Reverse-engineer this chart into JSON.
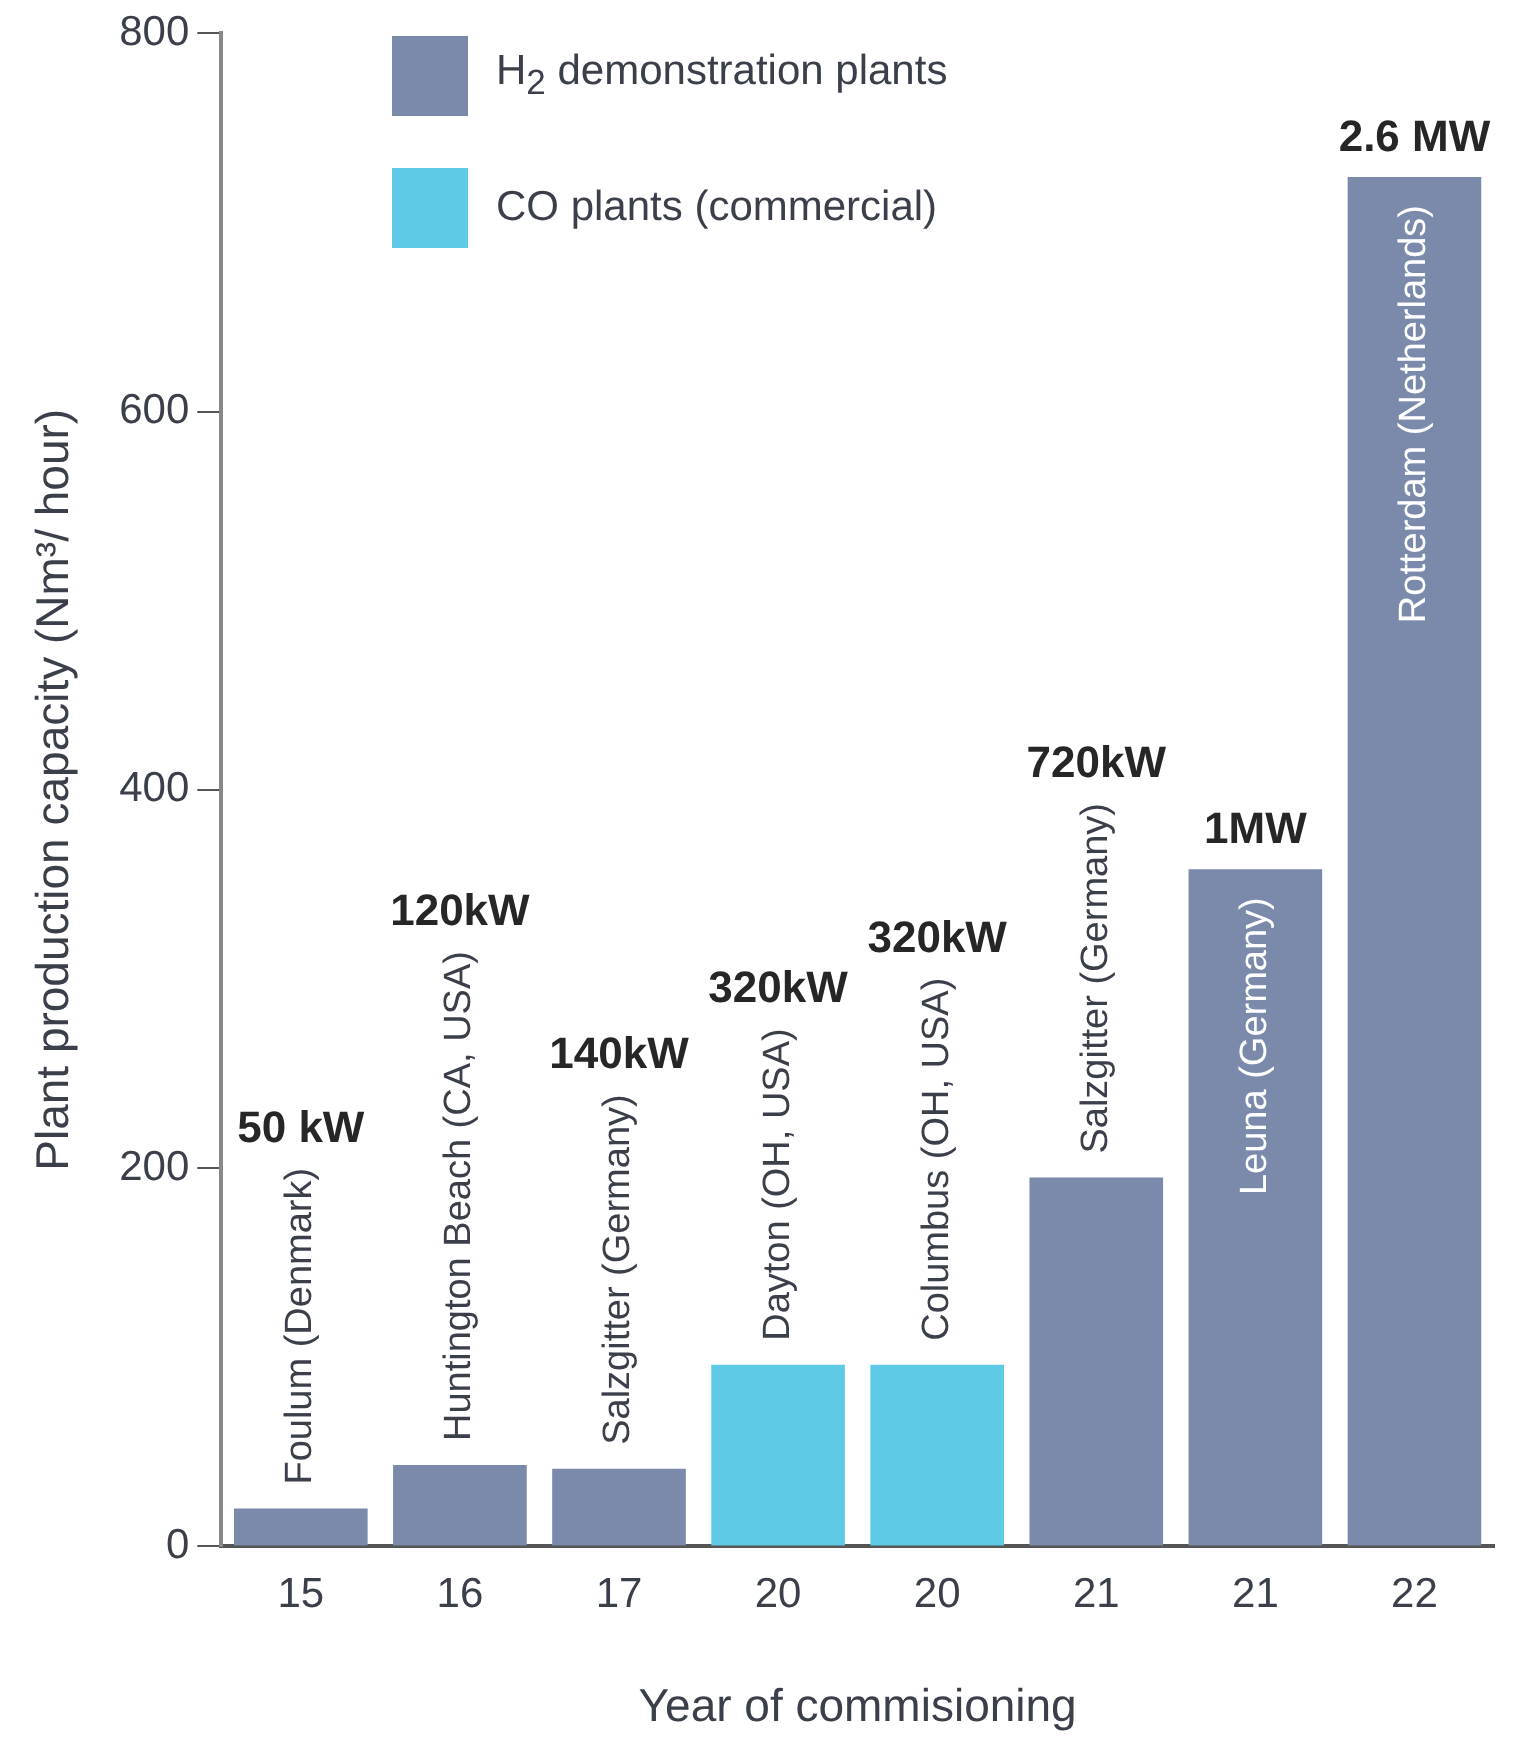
{
  "chart_data": {
    "type": "bar",
    "xlabel": "Year of commisioning",
    "ylabel": "Plant production capacity (Nm³/ hour)",
    "categories": [
      "15",
      "16",
      "17",
      "20",
      "20",
      "21",
      "21",
      "22"
    ],
    "series": [
      {
        "name": "H$_{2}$ demonstration plants",
        "color": "#7b8aaa",
        "values": [
          20,
          43,
          41,
          null,
          null,
          195,
          358,
          724
        ]
      },
      {
        "name": "CO plants (commercial)",
        "color": "#5ecae6",
        "values": [
          null,
          null,
          null,
          96,
          96,
          null,
          null,
          null
        ]
      }
    ],
    "annotations": [
      "Foulum (Denmark)",
      "Huntington Beach (CA, USA)",
      "Salzgitter (Germany)",
      "Dayton (OH, USA)",
      "Columbus (OH, USA)",
      "Salzgitter (Germany)",
      "Leuna (Germany)",
      "Rotterdam (Netherlands)",
      "50 kW",
      "120kW",
      "140kW",
      "320kW",
      "320kW",
      "720kW",
      "1MW",
      "2.6 MW"
    ],
    "ylim": [
      0,
      800
    ],
    "yticks": [
      0,
      200,
      400,
      600,
      800
    ],
    "grid": false,
    "legend": "top left"
  }
}
